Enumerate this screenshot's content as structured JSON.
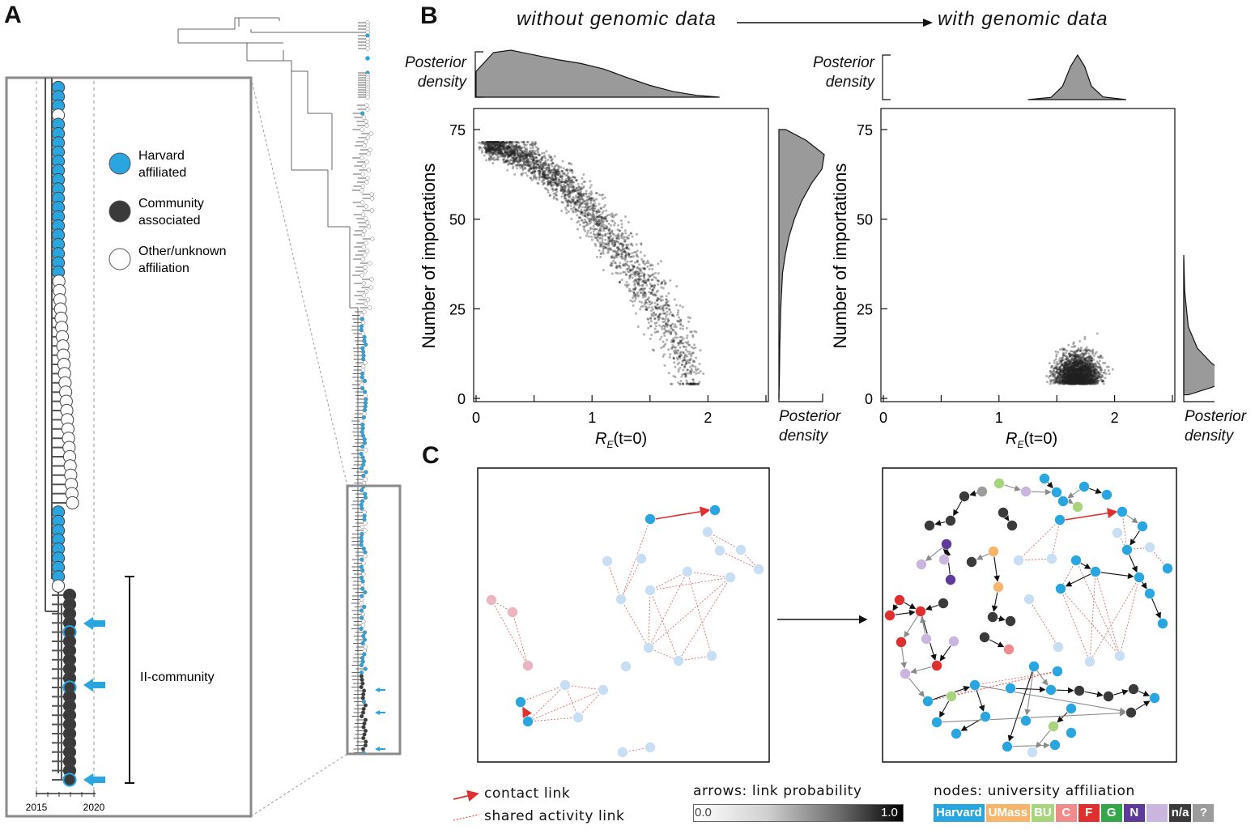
{
  "panels": {
    "a": "A",
    "b": "B",
    "c": "C"
  },
  "panel_a": {
    "legend": [
      {
        "line1": "Harvard",
        "line2": "affiliated",
        "color": "#29a6df"
      },
      {
        "line1": "Community",
        "line2": "associated",
        "color": "#3a3a3a"
      },
      {
        "line1": "Other/unknown",
        "line2": "affiliation",
        "color": "#ffffff"
      }
    ],
    "bracket_label": "II-community",
    "axis_ticks": [
      "2015",
      "2020"
    ],
    "zoom_tips": [
      "h",
      "h",
      "h",
      "o",
      "h",
      "h",
      "h",
      "h",
      "h",
      "h",
      "h",
      "h",
      "h",
      "h",
      "h",
      "h",
      "h",
      "h",
      "h",
      "h",
      "h",
      "o",
      "o",
      "o",
      "o",
      "o",
      "o",
      "o",
      "o",
      "o",
      "o",
      "o",
      "o",
      "o",
      "o",
      "o",
      "o",
      "o",
      "o",
      "o",
      "o",
      "o",
      "o",
      "o",
      "o",
      "o",
      "h",
      "h",
      "h",
      "h",
      "h",
      "h",
      "h",
      "h",
      "o",
      "c",
      "c",
      "c",
      "c",
      "ch",
      "c",
      "c",
      "c",
      "c",
      "c",
      "ch",
      "c",
      "c",
      "c",
      "c",
      "c",
      "c",
      "c",
      "c",
      "c",
      "ch"
    ]
  },
  "panel_b": {
    "header_left": "without genomic data",
    "header_right": "with genomic data",
    "posterior_top": [
      "Posterior",
      "density"
    ],
    "posterior_side": [
      "Posterior",
      "density"
    ]
  },
  "chart_data": [
    {
      "type": "scatter",
      "title": "without genomic data",
      "xlabel": "R_E(t=0)",
      "ylabel": "Number of importations",
      "xlim": [
        0,
        2.5
      ],
      "ylim": [
        0,
        75
      ],
      "x_ticks": [
        "0",
        "1",
        "2"
      ],
      "y_ticks": [
        "0",
        "25",
        "50",
        "75"
      ],
      "x_tick_values": [
        0,
        0.5,
        1,
        1.5,
        2,
        2.5
      ],
      "y_tick_values": [
        0,
        25,
        50,
        75
      ],
      "cloud": {
        "x_range": [
          0.1,
          1.9
        ],
        "y_at_x_min": 70,
        "y_at_x_max": 5
      },
      "top_density": [
        [
          0.0,
          0.55
        ],
        [
          0.15,
          0.95
        ],
        [
          0.3,
          1.0
        ],
        [
          0.5,
          0.9
        ],
        [
          0.7,
          0.8
        ],
        [
          0.9,
          0.72
        ],
        [
          1.1,
          0.6
        ],
        [
          1.3,
          0.42
        ],
        [
          1.5,
          0.25
        ],
        [
          1.7,
          0.12
        ],
        [
          1.9,
          0.04
        ],
        [
          2.1,
          0.0
        ]
      ],
      "side_density": [
        [
          75,
          0.15
        ],
        [
          72,
          0.6
        ],
        [
          68,
          1.0
        ],
        [
          64,
          0.95
        ],
        [
          60,
          0.72
        ],
        [
          55,
          0.5
        ],
        [
          50,
          0.34
        ],
        [
          45,
          0.22
        ],
        [
          40,
          0.14
        ],
        [
          35,
          0.08
        ],
        [
          25,
          0.04
        ],
        [
          15,
          0.02
        ],
        [
          5,
          0.01
        ],
        [
          0,
          0.0
        ]
      ]
    },
    {
      "type": "scatter",
      "title": "with genomic data",
      "xlabel": "R_E(t=0)",
      "ylabel": "Number of importations",
      "xlim": [
        0,
        2.5
      ],
      "ylim": [
        0,
        75
      ],
      "x_ticks": [
        "0",
        "1",
        "2"
      ],
      "y_ticks": [
        "0",
        "25",
        "50",
        "75"
      ],
      "x_tick_values": [
        0,
        0.5,
        1,
        1.5,
        2,
        2.5
      ],
      "y_tick_values": [
        0,
        25,
        50,
        75
      ],
      "cloud": {
        "x_center": 1.68,
        "x_sd": 0.13,
        "y_center": 8,
        "y_sd": 5,
        "y_min": 4,
        "y_max": 35
      },
      "top_density": [
        [
          1.25,
          0.0
        ],
        [
          1.45,
          0.05
        ],
        [
          1.55,
          0.3
        ],
        [
          1.62,
          0.75
        ],
        [
          1.68,
          1.0
        ],
        [
          1.74,
          0.75
        ],
        [
          1.8,
          0.3
        ],
        [
          1.9,
          0.06
        ],
        [
          2.1,
          0.0
        ]
      ],
      "side_density": [
        [
          40,
          0.0
        ],
        [
          30,
          0.02
        ],
        [
          20,
          0.1
        ],
        [
          14,
          0.3
        ],
        [
          10,
          0.6
        ],
        [
          7,
          0.9
        ],
        [
          5,
          1.0
        ],
        [
          3,
          0.6
        ],
        [
          1,
          0.1
        ]
      ]
    }
  ],
  "panel_c": {
    "legend": {
      "contact": "contact link",
      "shared": "shared activity link",
      "arrows_title": "arrows: link probability",
      "grad_min": "0.0",
      "grad_max": "1.0",
      "nodes_title": "nodes: university affiliation"
    },
    "affiliations": [
      {
        "label": "Harvard",
        "color": "#29a6df"
      },
      {
        "label": "UMass",
        "color": "#f7b56b"
      },
      {
        "label": "BU",
        "color": "#a9d47e"
      },
      {
        "label": "C",
        "color": "#f08b8b"
      },
      {
        "label": "F",
        "color": "#e02f2f"
      },
      {
        "label": "G",
        "color": "#35a74a"
      },
      {
        "label": "N",
        "color": "#5e3a9a"
      },
      {
        "label": "",
        "color": "#c9b5dd"
      },
      {
        "label": "n/a",
        "color": "#3a3a3a"
      },
      {
        "label": "?",
        "color": "#9c9c9c"
      }
    ],
    "left_nodes": [
      {
        "x": 803,
        "y": 641,
        "c": "#29a6df"
      },
      {
        "x": 883,
        "y": 630,
        "c": "#29a6df"
      },
      {
        "x": 874,
        "y": 657,
        "c": "#c7def3"
      },
      {
        "x": 889,
        "y": 680,
        "c": "#c7def3"
      },
      {
        "x": 915,
        "y": 679,
        "c": "#c7def3"
      },
      {
        "x": 937,
        "y": 703,
        "c": "#c7def3"
      },
      {
        "x": 750,
        "y": 693,
        "c": "#c7def3"
      },
      {
        "x": 792,
        "y": 690,
        "c": "#c7def3"
      },
      {
        "x": 767,
        "y": 740,
        "c": "#c7def3"
      },
      {
        "x": 803,
        "y": 729,
        "c": "#c7def3"
      },
      {
        "x": 849,
        "y": 706,
        "c": "#c7def3"
      },
      {
        "x": 902,
        "y": 713,
        "c": "#c7def3"
      },
      {
        "x": 801,
        "y": 800,
        "c": "#c7def3"
      },
      {
        "x": 838,
        "y": 816,
        "c": "#c7def3"
      },
      {
        "x": 879,
        "y": 810,
        "c": "#c7def3"
      },
      {
        "x": 773,
        "y": 823,
        "c": "#c7def3"
      },
      {
        "x": 607,
        "y": 741,
        "c": "#eab5c0"
      },
      {
        "x": 633,
        "y": 756,
        "c": "#eab5c0"
      },
      {
        "x": 652,
        "y": 822,
        "c": "#eab5c0"
      },
      {
        "x": 698,
        "y": 846,
        "c": "#c7def3"
      },
      {
        "x": 745,
        "y": 852,
        "c": "#c7def3"
      },
      {
        "x": 714,
        "y": 886,
        "c": "#c7def3"
      },
      {
        "x": 643,
        "y": 867,
        "c": "#29a6df"
      },
      {
        "x": 652,
        "y": 891,
        "c": "#29a6df"
      },
      {
        "x": 769,
        "y": 929,
        "c": "#c7def3"
      },
      {
        "x": 803,
        "y": 923,
        "c": "#c7def3"
      }
    ],
    "right_nodes": [
      {
        "x": 1290,
        "y": 591,
        "c": "#29a6df"
      },
      {
        "x": 1234,
        "y": 597,
        "c": "#a9d47e"
      },
      {
        "x": 1267,
        "y": 607,
        "c": "#c9b5dd"
      },
      {
        "x": 1305,
        "y": 608,
        "c": "#29a6df"
      },
      {
        "x": 1339,
        "y": 601,
        "c": "#29a6df"
      },
      {
        "x": 1367,
        "y": 611,
        "c": "#29a6df"
      },
      {
        "x": 1331,
        "y": 626,
        "c": "#a9d47e"
      },
      {
        "x": 1313,
        "y": 619,
        "c": "#29a6df"
      },
      {
        "x": 1213,
        "y": 607,
        "c": "#9c9c9c"
      },
      {
        "x": 1191,
        "y": 613,
        "c": "#3a3a3a"
      },
      {
        "x": 1174,
        "y": 643,
        "c": "#3a3a3a"
      },
      {
        "x": 1148,
        "y": 649,
        "c": "#3a3a3a"
      },
      {
        "x": 1239,
        "y": 633,
        "c": "#3a3a3a"
      },
      {
        "x": 1250,
        "y": 649,
        "c": "#3a3a3a"
      },
      {
        "x": 1309,
        "y": 642,
        "c": "#29a6df"
      },
      {
        "x": 1386,
        "y": 632,
        "c": "#29a6df"
      },
      {
        "x": 1411,
        "y": 650,
        "c": "#29a6df"
      },
      {
        "x": 1380,
        "y": 658,
        "c": "#c7def3"
      },
      {
        "x": 1392,
        "y": 679,
        "c": "#29a6df"
      },
      {
        "x": 1420,
        "y": 676,
        "c": "#c7def3"
      },
      {
        "x": 1442,
        "y": 702,
        "c": "#29a6df"
      },
      {
        "x": 1169,
        "y": 672,
        "c": "#5e3a9a"
      },
      {
        "x": 1138,
        "y": 697,
        "c": "#c9b5dd"
      },
      {
        "x": 1166,
        "y": 691,
        "c": "#c9b5dd"
      },
      {
        "x": 1174,
        "y": 716,
        "c": "#5e3a9a"
      },
      {
        "x": 1227,
        "y": 681,
        "c": "#f7b56b"
      },
      {
        "x": 1200,
        "y": 694,
        "c": "#3a3a3a"
      },
      {
        "x": 1258,
        "y": 692,
        "c": "#c7def3"
      },
      {
        "x": 1233,
        "y": 725,
        "c": "#f7b56b"
      },
      {
        "x": 1299,
        "y": 690,
        "c": "#c7def3"
      },
      {
        "x": 1329,
        "y": 692,
        "c": "#29a6df"
      },
      {
        "x": 1353,
        "y": 706,
        "c": "#29a6df"
      },
      {
        "x": 1310,
        "y": 727,
        "c": "#29a6df"
      },
      {
        "x": 1407,
        "y": 713,
        "c": "#29a6df"
      },
      {
        "x": 1420,
        "y": 733,
        "c": "#29a6df"
      },
      {
        "x": 1436,
        "y": 770,
        "c": "#29a6df"
      },
      {
        "x": 1111,
        "y": 741,
        "c": "#e02f2f"
      },
      {
        "x": 1137,
        "y": 755,
        "c": "#e02f2f"
      },
      {
        "x": 1165,
        "y": 745,
        "c": "#3a3a3a"
      },
      {
        "x": 1099,
        "y": 760,
        "c": "#e02f2f"
      },
      {
        "x": 1271,
        "y": 740,
        "c": "#c7def3"
      },
      {
        "x": 1226,
        "y": 762,
        "c": "#3a3a3a"
      },
      {
        "x": 1248,
        "y": 767,
        "c": "#3a3a3a"
      },
      {
        "x": 1113,
        "y": 793,
        "c": "#e02f2f"
      },
      {
        "x": 1144,
        "y": 789,
        "c": "#c9b5dd"
      },
      {
        "x": 1178,
        "y": 792,
        "c": "#c9b5dd"
      },
      {
        "x": 1216,
        "y": 787,
        "c": "#3a3a3a"
      },
      {
        "x": 1246,
        "y": 802,
        "c": "#f08b8b"
      },
      {
        "x": 1157,
        "y": 822,
        "c": "#e02f2f"
      },
      {
        "x": 1118,
        "y": 832,
        "c": "#c9b5dd"
      },
      {
        "x": 1277,
        "y": 823,
        "c": "#29a6df"
      },
      {
        "x": 1307,
        "y": 799,
        "c": "#c7def3"
      },
      {
        "x": 1346,
        "y": 817,
        "c": "#c7def3"
      },
      {
        "x": 1383,
        "y": 810,
        "c": "#c7def3"
      },
      {
        "x": 1306,
        "y": 829,
        "c": "#29a6df"
      },
      {
        "x": 1146,
        "y": 866,
        "c": "#29a6df"
      },
      {
        "x": 1175,
        "y": 860,
        "c": "#a9d47e"
      },
      {
        "x": 1204,
        "y": 846,
        "c": "#29a6df"
      },
      {
        "x": 1248,
        "y": 850,
        "c": "#29a6df"
      },
      {
        "x": 1298,
        "y": 852,
        "c": "#29a6df"
      },
      {
        "x": 1333,
        "y": 853,
        "c": "#3a3a3a"
      },
      {
        "x": 1369,
        "y": 860,
        "c": "#3a3a3a"
      },
      {
        "x": 1400,
        "y": 851,
        "c": "#3a3a3a"
      },
      {
        "x": 1426,
        "y": 862,
        "c": "#29a6df"
      },
      {
        "x": 1397,
        "y": 880,
        "c": "#3a3a3a"
      },
      {
        "x": 1157,
        "y": 892,
        "c": "#29a6df"
      },
      {
        "x": 1217,
        "y": 885,
        "c": "#29a6df"
      },
      {
        "x": 1323,
        "y": 875,
        "c": "#29a6df"
      },
      {
        "x": 1301,
        "y": 897,
        "c": "#a9d47e"
      },
      {
        "x": 1181,
        "y": 906,
        "c": "#29a6df"
      },
      {
        "x": 1267,
        "y": 890,
        "c": "#29a6df"
      },
      {
        "x": 1244,
        "y": 922,
        "c": "#29a6df"
      },
      {
        "x": 1323,
        "y": 905,
        "c": "#29a6df"
      },
      {
        "x": 1275,
        "y": 929,
        "c": "#c7def3"
      },
      {
        "x": 1303,
        "y": 920,
        "c": "#29a6df"
      }
    ]
  }
}
